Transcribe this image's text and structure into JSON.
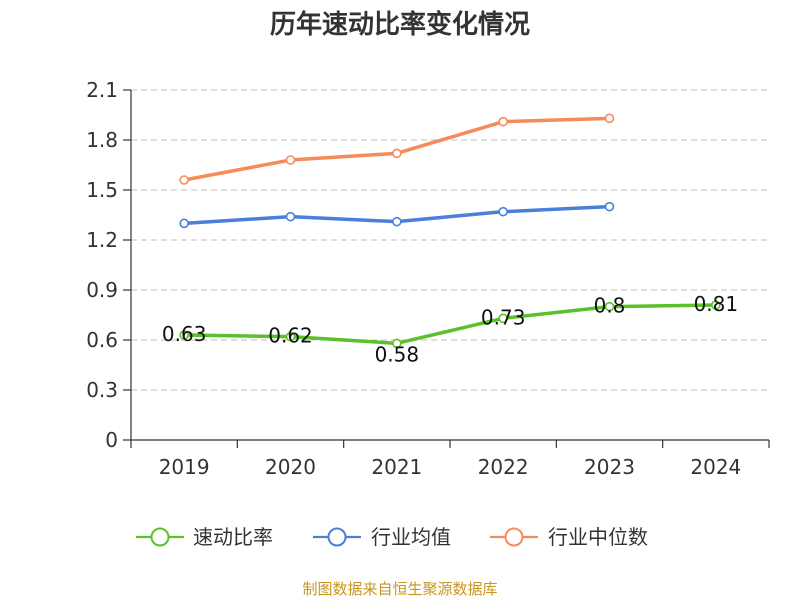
{
  "chart_data": {
    "type": "line",
    "title": "历年速动比率变化情况",
    "categories": [
      "2019",
      "2020",
      "2021",
      "2022",
      "2023",
      "2024"
    ],
    "ylim": [
      0,
      2.1
    ],
    "yticks": [
      "0",
      "0.3",
      "0.6",
      "0.9",
      "1.2",
      "1.5",
      "1.8",
      "2.1"
    ],
    "xlabel": "",
    "ylabel": "",
    "grid": true,
    "legend_position": "bottom",
    "series": [
      {
        "name": "速动比率",
        "color": "#5cc02b",
        "values": [
          0.63,
          0.62,
          0.58,
          0.73,
          0.8,
          0.81
        ],
        "labels": [
          "0.63",
          "0.62",
          "0.58",
          "0.73",
          "0.8",
          "0.81"
        ]
      },
      {
        "name": "行业均值",
        "color": "#4a7fdb",
        "values": [
          1.3,
          1.34,
          1.31,
          1.37,
          1.4,
          null
        ]
      },
      {
        "name": "行业中位数",
        "color": "#f68b5a",
        "values": [
          1.56,
          1.68,
          1.72,
          1.91,
          1.93,
          null
        ]
      }
    ]
  },
  "source": "制图数据来自恒生聚源数据库"
}
